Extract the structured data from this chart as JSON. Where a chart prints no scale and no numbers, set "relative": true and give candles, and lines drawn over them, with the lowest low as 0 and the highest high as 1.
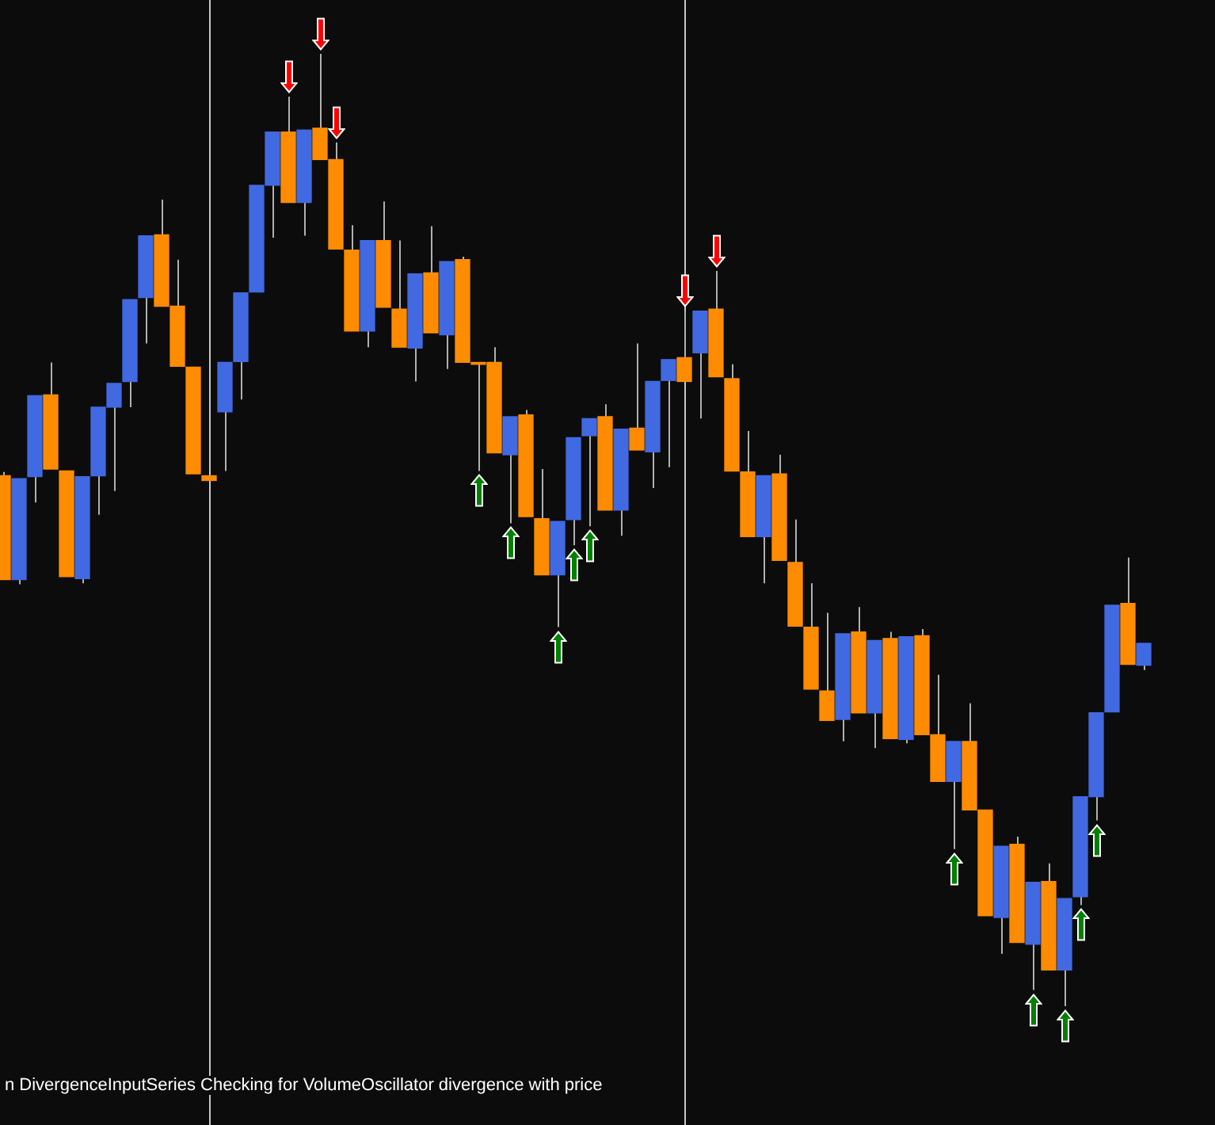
{
  "chart_data": {
    "type": "candlestick",
    "relative": true,
    "categories": [
      null,
      null,
      null,
      null,
      null,
      null,
      null,
      null,
      null,
      null,
      null,
      null,
      null,
      null,
      null,
      null,
      null,
      null,
      null,
      null,
      null,
      null,
      null,
      null,
      null,
      null,
      null,
      null,
      null,
      null,
      null,
      null,
      null,
      null,
      null,
      null,
      null,
      null,
      null,
      null,
      null,
      null,
      null,
      null,
      null,
      null,
      null,
      null,
      null,
      null,
      null,
      null,
      null,
      null,
      null,
      null,
      null,
      null,
      null,
      null,
      null,
      null,
      null,
      null,
      null,
      null,
      null,
      null,
      null,
      null,
      null,
      null,
      null
    ],
    "ohlc": [
      [
        0.557,
        0.561,
        0.448,
        0.448
      ],
      [
        0.448,
        0.554,
        0.443,
        0.554
      ],
      [
        0.556,
        0.641,
        0.529,
        0.641
      ],
      [
        0.642,
        0.676,
        0.564,
        0.564
      ],
      [
        0.562,
        0.562,
        0.451,
        0.451
      ],
      [
        0.449,
        0.556,
        0.444,
        0.556
      ],
      [
        0.557,
        0.629,
        0.516,
        0.629
      ],
      [
        0.629,
        0.654,
        0.541,
        0.654
      ],
      [
        0.656,
        0.742,
        0.629,
        0.742
      ],
      [
        0.744,
        0.809,
        0.696,
        0.809
      ],
      [
        0.81,
        0.847,
        0.735,
        0.735
      ],
      [
        0.735,
        0.784,
        0.672,
        0.672
      ],
      [
        0.671,
        0.671,
        0.559,
        0.559
      ],
      [
        0.557,
        0.557,
        0.552,
        0.552
      ],
      [
        0.624,
        0.676,
        0.562,
        0.676
      ],
      [
        0.677,
        0.749,
        0.637,
        0.749
      ],
      [
        0.75,
        0.862,
        0.75,
        0.862
      ],
      [
        0.862,
        0.918,
        0.807,
        0.918
      ],
      [
        0.918,
        0.955,
        0.844,
        0.844
      ],
      [
        0.844,
        0.92,
        0.809,
        0.92
      ],
      [
        0.922,
        1,
        0.889,
        0.889
      ],
      [
        0.889,
        0.907,
        0.795,
        0.795
      ],
      [
        0.794,
        0.82,
        0.709,
        0.709
      ],
      [
        0.709,
        0.804,
        0.692,
        0.804
      ],
      [
        0.804,
        0.845,
        0.734,
        0.734
      ],
      [
        0.732,
        0.804,
        0.692,
        0.692
      ],
      [
        0.691,
        0.769,
        0.656,
        0.769
      ],
      [
        0.77,
        0.819,
        0.707,
        0.707
      ],
      [
        0.705,
        0.782,
        0.669,
        0.782
      ],
      [
        0.784,
        0.787,
        0.676,
        0.676
      ],
      [
        0.676,
        0.676,
        0.562,
        0.674
      ],
      [
        0.676,
        0.692,
        0.581,
        0.581
      ],
      [
        0.579,
        0.619,
        0.507,
        0.619
      ],
      [
        0.621,
        0.626,
        0.514,
        0.514
      ],
      [
        0.512,
        0.564,
        0.453,
        0.453
      ],
      [
        0.453,
        0.509,
        0.398,
        0.509
      ],
      [
        0.511,
        0.597,
        0.484,
        0.597
      ],
      [
        0.599,
        0.617,
        0.504,
        0.617
      ],
      [
        0.619,
        0.632,
        0.521,
        0.521
      ],
      [
        0.521,
        0.606,
        0.494,
        0.606
      ],
      [
        0.607,
        0.696,
        0.584,
        0.584
      ],
      [
        0.582,
        0.656,
        0.544,
        0.656
      ],
      [
        0.657,
        0.679,
        0.566,
        0.679
      ],
      [
        0.681,
        0.73,
        0.656,
        0.656
      ],
      [
        0.686,
        0.73,
        0.617,
        0.73
      ],
      [
        0.732,
        0.772,
        0.661,
        0.661
      ],
      [
        0.659,
        0.674,
        0.562,
        0.562
      ],
      [
        0.561,
        0.604,
        0.493,
        0.493
      ],
      [
        0.493,
        0.557,
        0.444,
        0.557
      ],
      [
        0.559,
        0.579,
        0.468,
        0.468
      ],
      [
        0.466,
        0.511,
        0.399,
        0.399
      ],
      [
        0.398,
        0.444,
        0.333,
        0.333
      ],
      [
        0.331,
        0.413,
        0.3,
        0.3
      ],
      [
        0.301,
        0.391,
        0.278,
        0.391
      ],
      [
        0.393,
        0.419,
        0.308,
        0.308
      ],
      [
        0.308,
        0.384,
        0.271,
        0.384
      ],
      [
        0.386,
        0.393,
        0.281,
        0.281
      ],
      [
        0.28,
        0.388,
        0.276,
        0.388
      ],
      [
        0.389,
        0.396,
        0.285,
        0.285
      ],
      [
        0.285,
        0.348,
        0.236,
        0.236
      ],
      [
        0.236,
        0.278,
        0.165,
        0.278
      ],
      [
        0.278,
        0.318,
        0.206,
        0.206
      ],
      [
        0.206,
        0.206,
        0.095,
        0.095
      ],
      [
        0.093,
        0.168,
        0.055,
        0.168
      ],
      [
        0.17,
        0.178,
        0.067,
        0.067
      ],
      [
        0.065,
        0.13,
        0.017,
        0.13
      ],
      [
        0.131,
        0.15,
        0.038,
        0.038
      ],
      [
        0.038,
        0.113,
        0,
        0.113
      ],
      [
        0.115,
        0.22,
        0.106,
        0.22
      ],
      [
        0.22,
        0.308,
        0.195,
        0.308
      ],
      [
        0.309,
        0.421,
        0.309,
        0.421
      ],
      [
        0.423,
        0.471,
        0.359,
        0.359
      ],
      [
        0.358,
        0.381,
        0.353,
        0.381
      ]
    ],
    "colors": [
      "#ff8c00",
      "#4169e1",
      "#4169e1",
      "#ff8c00",
      "#ff8c00",
      "#4169e1",
      "#4169e1",
      "#4169e1",
      "#4169e1",
      "#4169e1",
      "#ff8c00",
      "#ff8c00",
      "#ff8c00",
      "#ff8c00",
      "#4169e1",
      "#4169e1",
      "#4169e1",
      "#4169e1",
      "#ff8c00",
      "#4169e1",
      "#ff8c00",
      "#ff8c00",
      "#ff8c00",
      "#4169e1",
      "#ff8c00",
      "#ff8c00",
      "#4169e1",
      "#ff8c00",
      "#4169e1",
      "#ff8c00",
      "#ff8c00",
      "#ff8c00",
      "#4169e1",
      "#ff8c00",
      "#ff8c00",
      "#4169e1",
      "#4169e1",
      "#4169e1",
      "#ff8c00",
      "#4169e1",
      "#ff8c00",
      "#4169e1",
      "#4169e1",
      "#ff8c00",
      "#4169e1",
      "#ff8c00",
      "#ff8c00",
      "#ff8c00",
      "#4169e1",
      "#ff8c00",
      "#ff8c00",
      "#ff8c00",
      "#ff8c00",
      "#4169e1",
      "#ff8c00",
      "#4169e1",
      "#ff8c00",
      "#4169e1",
      "#ff8c00",
      "#ff8c00",
      "#4169e1",
      "#ff8c00",
      "#ff8c00",
      "#4169e1",
      "#ff8c00",
      "#4169e1",
      "#ff8c00",
      "#4169e1",
      "#4169e1",
      "#4169e1",
      "#4169e1",
      "#ff8c00",
      "#4169e1"
    ],
    "annotations": [
      "n DivergenceInputSeries Checking for VolumeOscillator divergence with price"
    ]
  }
}
